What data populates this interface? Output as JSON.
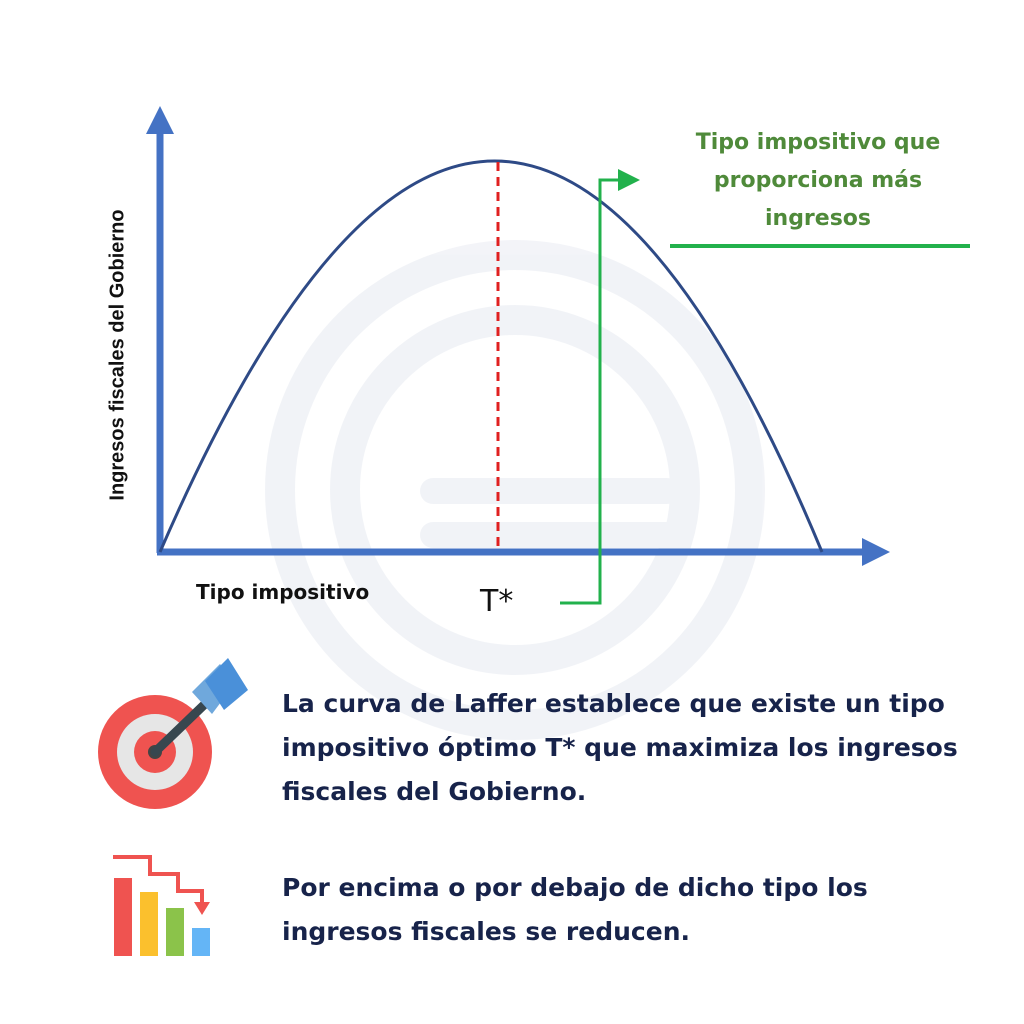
{
  "diagram": {
    "y_axis_label": "Ingresos fiscales del Gobierno",
    "x_axis_label": "Tipo impositivo",
    "optimum_label": "T*",
    "callout": "Tipo impositivo que proporciona más ingresos"
  },
  "info": [
    {
      "icon": "target-icon",
      "text": "La curva de Laffer establece que existe un tipo impositivo óptimo T* que maximiza los ingresos fiscales del Gobierno."
    },
    {
      "icon": "declining-bars-icon",
      "text": "Por encima o por debajo de dicho tipo los ingresos fiscales se reducen."
    }
  ],
  "colors": {
    "axis": "#4472c4",
    "curve": "#2e4a86",
    "optimum_line": "#e02020",
    "callout_green": "#22b14c",
    "callout_text": "#4f8a3a",
    "body_text": "#17234a"
  }
}
